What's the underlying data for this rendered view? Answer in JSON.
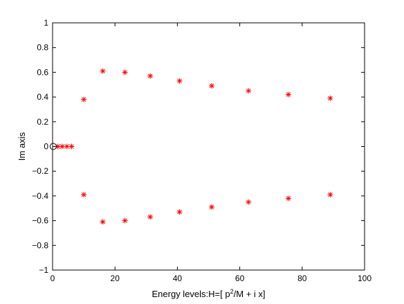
{
  "chart_data": {
    "type": "scatter",
    "title": "",
    "xlabel": "Energy levels:H=[ p²/M + i x]",
    "xlabel_parts": {
      "prefix": "Energy levels:H=[ p",
      "sup": "2",
      "suffix": "/M + i x]"
    },
    "ylabel": "Im axis",
    "xlim": [
      0,
      100
    ],
    "ylim": [
      -1,
      1
    ],
    "xticks": [
      0,
      20,
      40,
      60,
      80,
      100
    ],
    "yticks": [
      -1,
      -0.8,
      -0.6,
      -0.4,
      -0.2,
      0,
      0.2,
      0.4,
      0.6,
      0.8,
      1
    ],
    "xtick_labels": [
      "0",
      "20",
      "40",
      "60",
      "80",
      "100"
    ],
    "ytick_labels": [
      "−1",
      "−0.8",
      "−0.6",
      "−0.4",
      "−0.2",
      "0",
      "0.2",
      "0.4",
      "0.6",
      "0.8",
      "1"
    ],
    "grid": false,
    "legend": "none",
    "series": [
      {
        "marker": "asterisk",
        "color": "#ff0000",
        "x": [
          1.7,
          3.1,
          4.6,
          6.1,
          10.0,
          16.1,
          23.2,
          31.3,
          40.7,
          51.0,
          62.8,
          75.6,
          89.0,
          10.0,
          16.1,
          23.2,
          31.3,
          40.7,
          51.0,
          62.8,
          75.6,
          89.0
        ],
        "y": [
          0,
          0,
          0,
          0,
          0.38,
          0.61,
          0.6,
          0.57,
          0.53,
          0.49,
          0.45,
          0.42,
          0.39,
          -0.39,
          -0.61,
          -0.6,
          -0.57,
          -0.53,
          -0.49,
          -0.45,
          -0.42,
          -0.39
        ]
      },
      {
        "marker": "circle",
        "color": "#000000",
        "x": [
          0.2
        ],
        "y": [
          0
        ]
      }
    ]
  }
}
